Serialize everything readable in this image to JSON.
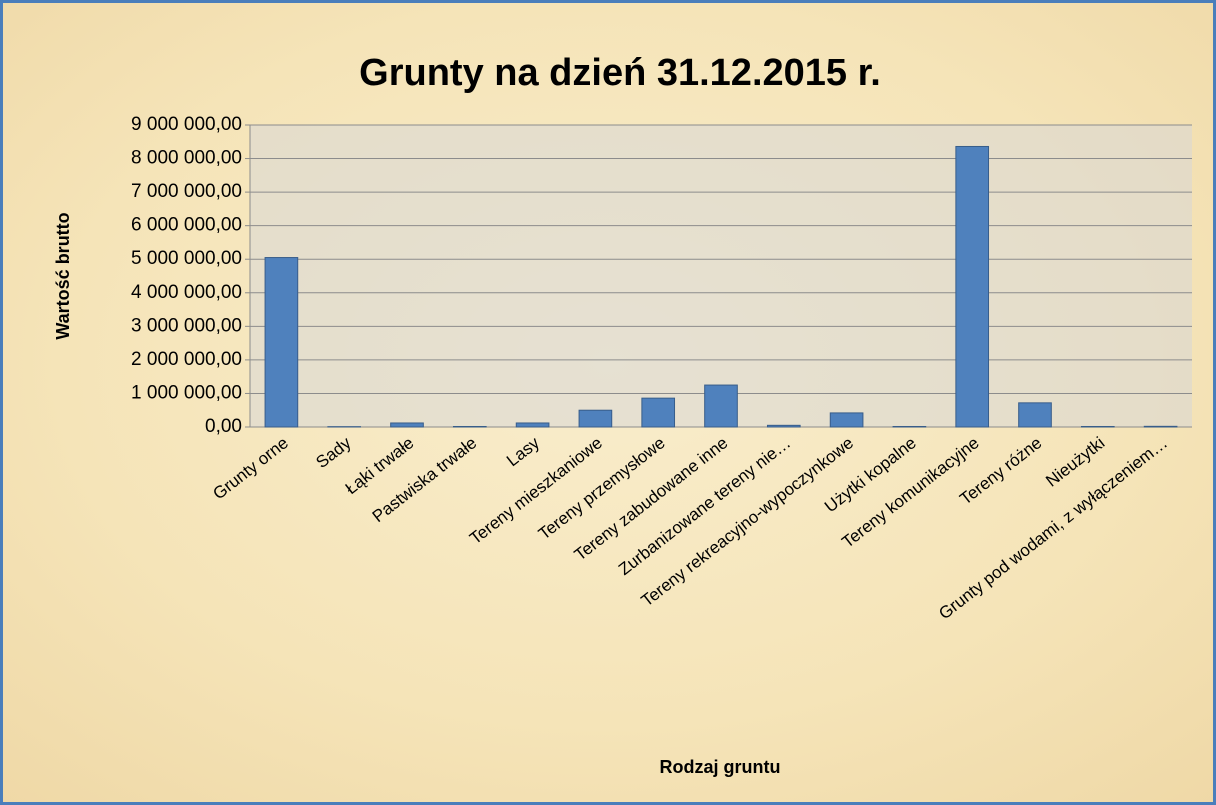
{
  "chart_data": {
    "type": "bar",
    "title": "Grunty na dzień 31.12.2015 r.",
    "y_label": "Wartość brutto",
    "x_label": "Rodzaj gruntu",
    "categories": [
      "Grunty orne",
      "Sady",
      "Łąki trwałe",
      "Pastwiska trwałe",
      "Lasy",
      "Tereny mieszkaniowe",
      "Tereny przemysłowe",
      "Tereny zabudowane inne",
      "Zurbanizowane tereny nie…",
      "Tereny rekreacyjno-wypoczynkowe",
      "Użytki kopalne",
      "Tereny komunikacyjne",
      "Tereny różne",
      "Nieużytki",
      "Grunty pod wodami, z wyłączeniem…"
    ],
    "values": [
      5050000,
      10000,
      120000,
      15000,
      120000,
      500000,
      860000,
      1250000,
      50000,
      420000,
      15000,
      8360000,
      720000,
      15000,
      20000
    ],
    "color": "#4f81bd",
    "ylim": [
      0,
      9000000
    ],
    "yticks": [
      {
        "value": 0,
        "label": "0,00"
      },
      {
        "value": 1000000,
        "label": "1 000 000,00"
      },
      {
        "value": 2000000,
        "label": "2 000 000,00"
      },
      {
        "value": 3000000,
        "label": "3 000 000,00"
      },
      {
        "value": 4000000,
        "label": "4 000 000,00"
      },
      {
        "value": 5000000,
        "label": "5 000 000,00"
      },
      {
        "value": 6000000,
        "label": "6 000 000,00"
      },
      {
        "value": 7000000,
        "label": "7 000 000,00"
      },
      {
        "value": 8000000,
        "label": "8 000 000,00"
      },
      {
        "value": 9000000,
        "label": "9 000 000,00"
      }
    ],
    "grid": true
  }
}
